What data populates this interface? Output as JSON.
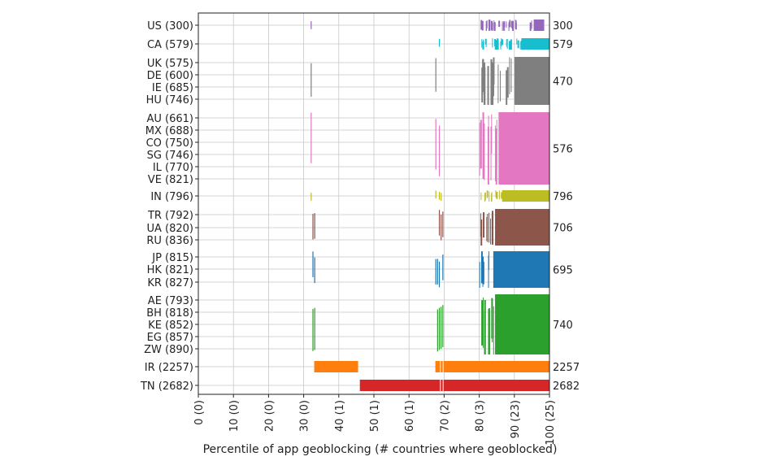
{
  "chart_data": {
    "type": "heatmap",
    "xlabel": "Percentile of app geoblocking (# countries where geoblocked)",
    "xlim": [
      0,
      100
    ],
    "xticks": [
      "0 (0)",
      "10 (0)",
      "20 (0)",
      "30 (0)",
      "40 (1)",
      "50 (1)",
      "60 (1)",
      "70 (2)",
      "80 (3)",
      "90 (23)",
      "100 (25)"
    ],
    "grid": true,
    "rows": [
      {
        "label": "US (300)"
      },
      {
        "label": "CA (579)"
      },
      {
        "label": "UK (575)"
      },
      {
        "label": "DE (600)"
      },
      {
        "label": "IE (685)"
      },
      {
        "label": "HU (746)"
      },
      {
        "label": "AU (661)"
      },
      {
        "label": "MX (688)"
      },
      {
        "label": "CO (750)"
      },
      {
        "label": "SG (746)"
      },
      {
        "label": "IL (770)"
      },
      {
        "label": "VE (821)"
      },
      {
        "label": "IN (796)"
      },
      {
        "label": "TR (792)"
      },
      {
        "label": "UA (820)"
      },
      {
        "label": "RU (836)"
      },
      {
        "label": "JP (815)"
      },
      {
        "label": "HK (821)"
      },
      {
        "label": "KR (827)"
      },
      {
        "label": "AE (793)"
      },
      {
        "label": "BH (818)"
      },
      {
        "label": "KE (852)"
      },
      {
        "label": "EG (857)"
      },
      {
        "label": "ZW (890)"
      },
      {
        "label": "IR (2257)"
      },
      {
        "label": "TN (2682)"
      }
    ],
    "groups": [
      {
        "members": [
          "US"
        ],
        "value": "300",
        "color": "#9467bd",
        "solid_from": 95.5,
        "solid_to": 98.5,
        "mid_start": 80,
        "mid_end": 95.5,
        "thin": [
          32
        ]
      },
      {
        "members": [
          "CA"
        ],
        "value": "579",
        "color": "#17becf",
        "solid_from": 92,
        "solid_to": 100,
        "mid_start": 80,
        "mid_end": 92,
        "thin": [
          68.5
        ]
      },
      {
        "members": [
          "UK",
          "DE",
          "IE",
          "HU"
        ],
        "value": "470",
        "color": "#7f7f7f",
        "solid_from": 90,
        "solid_to": 100,
        "mid_start": 80,
        "mid_end": 90,
        "thin": [
          32,
          67.5
        ]
      },
      {
        "members": [
          "AU",
          "MX",
          "CO",
          "SG",
          "IL",
          "VE"
        ],
        "value": "576",
        "color": "#e377c2",
        "solid_from": 85.5,
        "solid_to": 100,
        "mid_start": 80,
        "mid_end": 85.5,
        "thin": [
          32,
          67.5,
          68.5
        ]
      },
      {
        "members": [
          "IN"
        ],
        "value": "796",
        "color": "#bcbd22",
        "solid_from": 86.5,
        "solid_to": 100,
        "mid_start": 80,
        "mid_end": 86.5,
        "thin": [
          32,
          67.5,
          68.5,
          69
        ]
      },
      {
        "members": [
          "TR",
          "UA",
          "RU"
        ],
        "value": "706",
        "color": "#8c564b",
        "solid_from": 84.5,
        "solid_to": 100,
        "mid_start": 80,
        "mid_end": 84.5,
        "thin": [
          32.5,
          33,
          68.5,
          69,
          69.5
        ]
      },
      {
        "members": [
          "JP",
          "HK",
          "KR"
        ],
        "value": "695",
        "color": "#1f77b4",
        "solid_from": 84,
        "solid_to": 100,
        "mid_start": 80,
        "mid_end": 84,
        "thin": [
          32.5,
          33,
          67.5,
          68,
          68.5,
          69.5
        ]
      },
      {
        "members": [
          "AE",
          "BH",
          "KE",
          "EG",
          "ZW"
        ],
        "value": "740",
        "color": "#2ca02c",
        "solid_from": 84.5,
        "solid_to": 100,
        "mid_start": 80,
        "mid_end": 84.5,
        "thin": [
          32.5,
          33,
          68,
          68.5,
          69,
          69.5
        ]
      },
      {
        "members": [
          "IR"
        ],
        "value": "2257",
        "color": "#ff7f0e",
        "bars": [
          [
            33,
            45.5
          ],
          [
            67.5,
            100
          ]
        ]
      },
      {
        "members": [
          "TN"
        ],
        "value": "2682",
        "color": "#d62728",
        "bars": [
          [
            46,
            100
          ]
        ]
      }
    ]
  }
}
